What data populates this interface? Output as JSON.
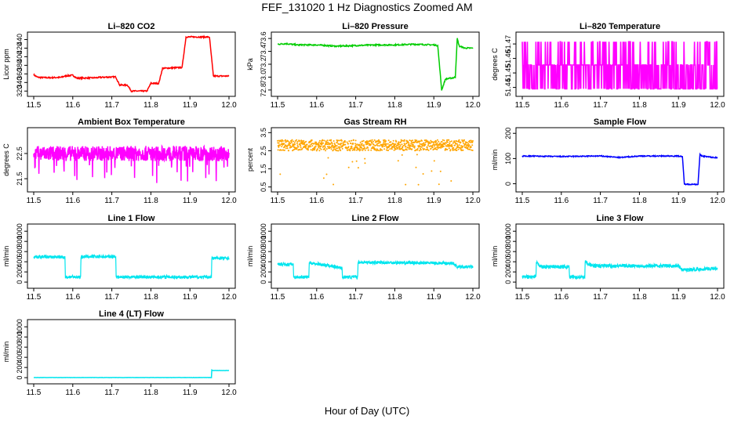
{
  "figure": {
    "title": "FEF_131020  1 Hz Diagnostics Zoomed AM",
    "xlabel": "Hour of Day (UTC)"
  },
  "chart_data": [
    {
      "type": "line",
      "title": "Li–820 CO2",
      "ylabel": "Licor ppm",
      "color": "#ff0000",
      "xlim": [
        11.5,
        12.0
      ],
      "xticks": [
        "11.5",
        "11.6",
        "11.7",
        "11.8",
        "11.9",
        "12.0"
      ],
      "ylim": [
        315,
        450
      ],
      "yticks": [
        "320",
        "340",
        "360",
        "380",
        "400",
        "420",
        "440"
      ],
      "x": [
        11.5,
        11.51,
        11.54,
        11.57,
        11.58,
        11.6,
        11.61,
        11.66,
        11.67,
        11.71,
        11.72,
        11.74,
        11.75,
        11.79,
        11.8,
        11.82,
        11.83,
        11.88,
        11.89,
        11.95,
        11.96,
        11.97,
        12.0
      ],
      "values": [
        358,
        352,
        351,
        352,
        355,
        357,
        350,
        351,
        352,
        353,
        334,
        334,
        320,
        320,
        338,
        338,
        373,
        375,
        446,
        446,
        355,
        355,
        355
      ],
      "noise": 1.5
    },
    {
      "type": "line",
      "title": "Li–820 Pressure",
      "ylabel": "kPa",
      "color": "#00cc00",
      "xlim": [
        11.5,
        12.0
      ],
      "xticks": [
        "11.5",
        "11.6",
        "11.7",
        "11.8",
        "11.9",
        "12.0"
      ],
      "ylim": [
        72.75,
        73.65
      ],
      "yticks": [
        "72.8",
        "73.0",
        "73.2",
        "73.4",
        "73.6"
      ],
      "x": [
        11.5,
        11.52,
        11.55,
        11.6,
        11.65,
        11.7,
        11.75,
        11.8,
        11.85,
        11.9,
        11.91,
        11.92,
        11.93,
        11.95,
        11.955,
        11.96,
        11.965,
        11.98,
        12.0
      ],
      "values": [
        73.51,
        73.52,
        73.5,
        73.5,
        73.48,
        73.49,
        73.5,
        73.5,
        73.51,
        73.5,
        73.49,
        72.8,
        72.97,
        72.99,
        73.0,
        73.6,
        73.48,
        73.45,
        73.45
      ],
      "noise": 0.01
    },
    {
      "type": "line",
      "title": "Li–820 Temperature",
      "ylabel": "degrees C",
      "color": "#ff00ff",
      "xlim": [
        11.5,
        12.0
      ],
      "xticks": [
        "11.5",
        "11.6",
        "11.7",
        "11.8",
        "11.9",
        "12.0"
      ],
      "ylim": [
        51.436,
        51.476
      ],
      "yticks": [
        "51.44",
        "51.45",
        "51.46",
        "51.47"
      ],
      "levels": [
        51.439,
        51.4555,
        51.4715
      ],
      "noise": 0
    },
    {
      "type": "line",
      "title": "Ambient Box Temperature",
      "ylabel": "degrees C",
      "color": "#ff00ff",
      "xlim": [
        11.5,
        12.0
      ],
      "xticks": [
        "11.5",
        "11.6",
        "11.7",
        "11.8",
        "11.9",
        "12.0"
      ],
      "ylim": [
        21.1,
        23.4
      ],
      "yticks": [
        "21.5",
        "22.5"
      ],
      "x": [
        11.5,
        12.0
      ],
      "values": [
        22.5,
        22.5
      ],
      "noise": 0.3,
      "dips_to": 21.3
    },
    {
      "type": "scatter",
      "title": "Gas Stream RH",
      "ylabel": "percent",
      "color": "#ffa500",
      "xlim": [
        11.5,
        12.0
      ],
      "xticks": [
        "11.5",
        "11.6",
        "11.7",
        "11.8",
        "11.9",
        "12.0"
      ],
      "ylim": [
        0.4,
        3.6
      ],
      "yticks": [
        "0.5",
        "1.5",
        "2.5",
        "3.5"
      ],
      "x": [
        11.5,
        12.0
      ],
      "values": [
        2.8,
        2.8
      ],
      "noise": 0.3,
      "dips_to": 0.6
    },
    {
      "type": "line",
      "title": "Sample Flow",
      "ylabel": "ml/min",
      "color": "#0000ff",
      "xlim": [
        11.5,
        12.0
      ],
      "xticks": [
        "11.5",
        "11.6",
        "11.7",
        "11.8",
        "11.9",
        "12.0"
      ],
      "ylim": [
        -20,
        210
      ],
      "yticks": [
        "0",
        "100",
        "200"
      ],
      "x": [
        11.5,
        11.6,
        11.7,
        11.75,
        11.8,
        11.9,
        11.91,
        11.915,
        11.95,
        11.955,
        11.96,
        11.99,
        12.0
      ],
      "values": [
        110,
        108,
        110,
        104,
        110,
        110,
        108,
        -2,
        -2,
        115,
        110,
        104,
        104
      ],
      "noise": 2
    },
    {
      "type": "line",
      "title": "Line 1 Flow",
      "ylabel": "ml/min",
      "color": "#00e5ee",
      "xlim": [
        11.5,
        12.0
      ],
      "xticks": [
        "11.5",
        "11.6",
        "11.7",
        "11.8",
        "11.9",
        "12.0"
      ],
      "ylim": [
        -60,
        1080
      ],
      "yticks": [
        "0",
        "200",
        "400",
        "600",
        "800",
        "1000"
      ],
      "x": [
        11.5,
        11.58,
        11.581,
        11.62,
        11.621,
        11.71,
        11.711,
        11.955,
        11.956,
        12.0
      ],
      "values": [
        500,
        490,
        100,
        100,
        500,
        500,
        100,
        100,
        470,
        470
      ],
      "noise": 30
    },
    {
      "type": "line",
      "title": "Line 2 Flow",
      "ylabel": "ml/min",
      "color": "#00e5ee",
      "xlim": [
        11.5,
        12.0
      ],
      "xticks": [
        "11.5",
        "11.6",
        "11.7",
        "11.8",
        "11.9",
        "12.0"
      ],
      "ylim": [
        -60,
        1080
      ],
      "yticks": [
        "0",
        "200",
        "400",
        "600",
        "800",
        "1000"
      ],
      "x": [
        11.5,
        11.54,
        11.541,
        11.58,
        11.581,
        11.625,
        11.626,
        11.665,
        11.666,
        11.705,
        11.706,
        11.95,
        11.96,
        12.0
      ],
      "values": [
        350,
        350,
        100,
        100,
        380,
        330,
        330,
        280,
        100,
        100,
        390,
        370,
        300,
        300
      ],
      "noise": 30
    },
    {
      "type": "line",
      "title": "Line 3 Flow",
      "ylabel": "ml/min",
      "color": "#00e5ee",
      "xlim": [
        11.5,
        12.0
      ],
      "xticks": [
        "11.5",
        "11.6",
        "11.7",
        "11.8",
        "11.9",
        "12.0"
      ],
      "ylim": [
        -60,
        1080
      ],
      "yticks": [
        "0",
        "200",
        "400",
        "600",
        "800",
        "1000"
      ],
      "x": [
        11.5,
        11.535,
        11.536,
        11.55,
        11.62,
        11.621,
        11.66,
        11.661,
        11.68,
        11.9,
        11.91,
        12.0
      ],
      "values": [
        100,
        100,
        380,
        300,
        300,
        100,
        100,
        400,
        320,
        320,
        240,
        270
      ],
      "noise": 35
    },
    {
      "type": "line",
      "title": "Line 4 (LT) Flow",
      "ylabel": "ml/min",
      "color": "#00e5ee",
      "xlim": [
        11.5,
        12.0
      ],
      "xticks": [
        "11.5",
        "11.6",
        "11.7",
        "11.8",
        "11.9",
        "12.0"
      ],
      "ylim": [
        -60,
        1080
      ],
      "yticks": [
        "0",
        "200",
        "400",
        "600",
        "800",
        "1000"
      ],
      "x": [
        11.5,
        11.955,
        11.956,
        11.96,
        12.0
      ],
      "values": [
        2,
        2,
        150,
        140,
        140
      ],
      "noise": 2
    }
  ]
}
